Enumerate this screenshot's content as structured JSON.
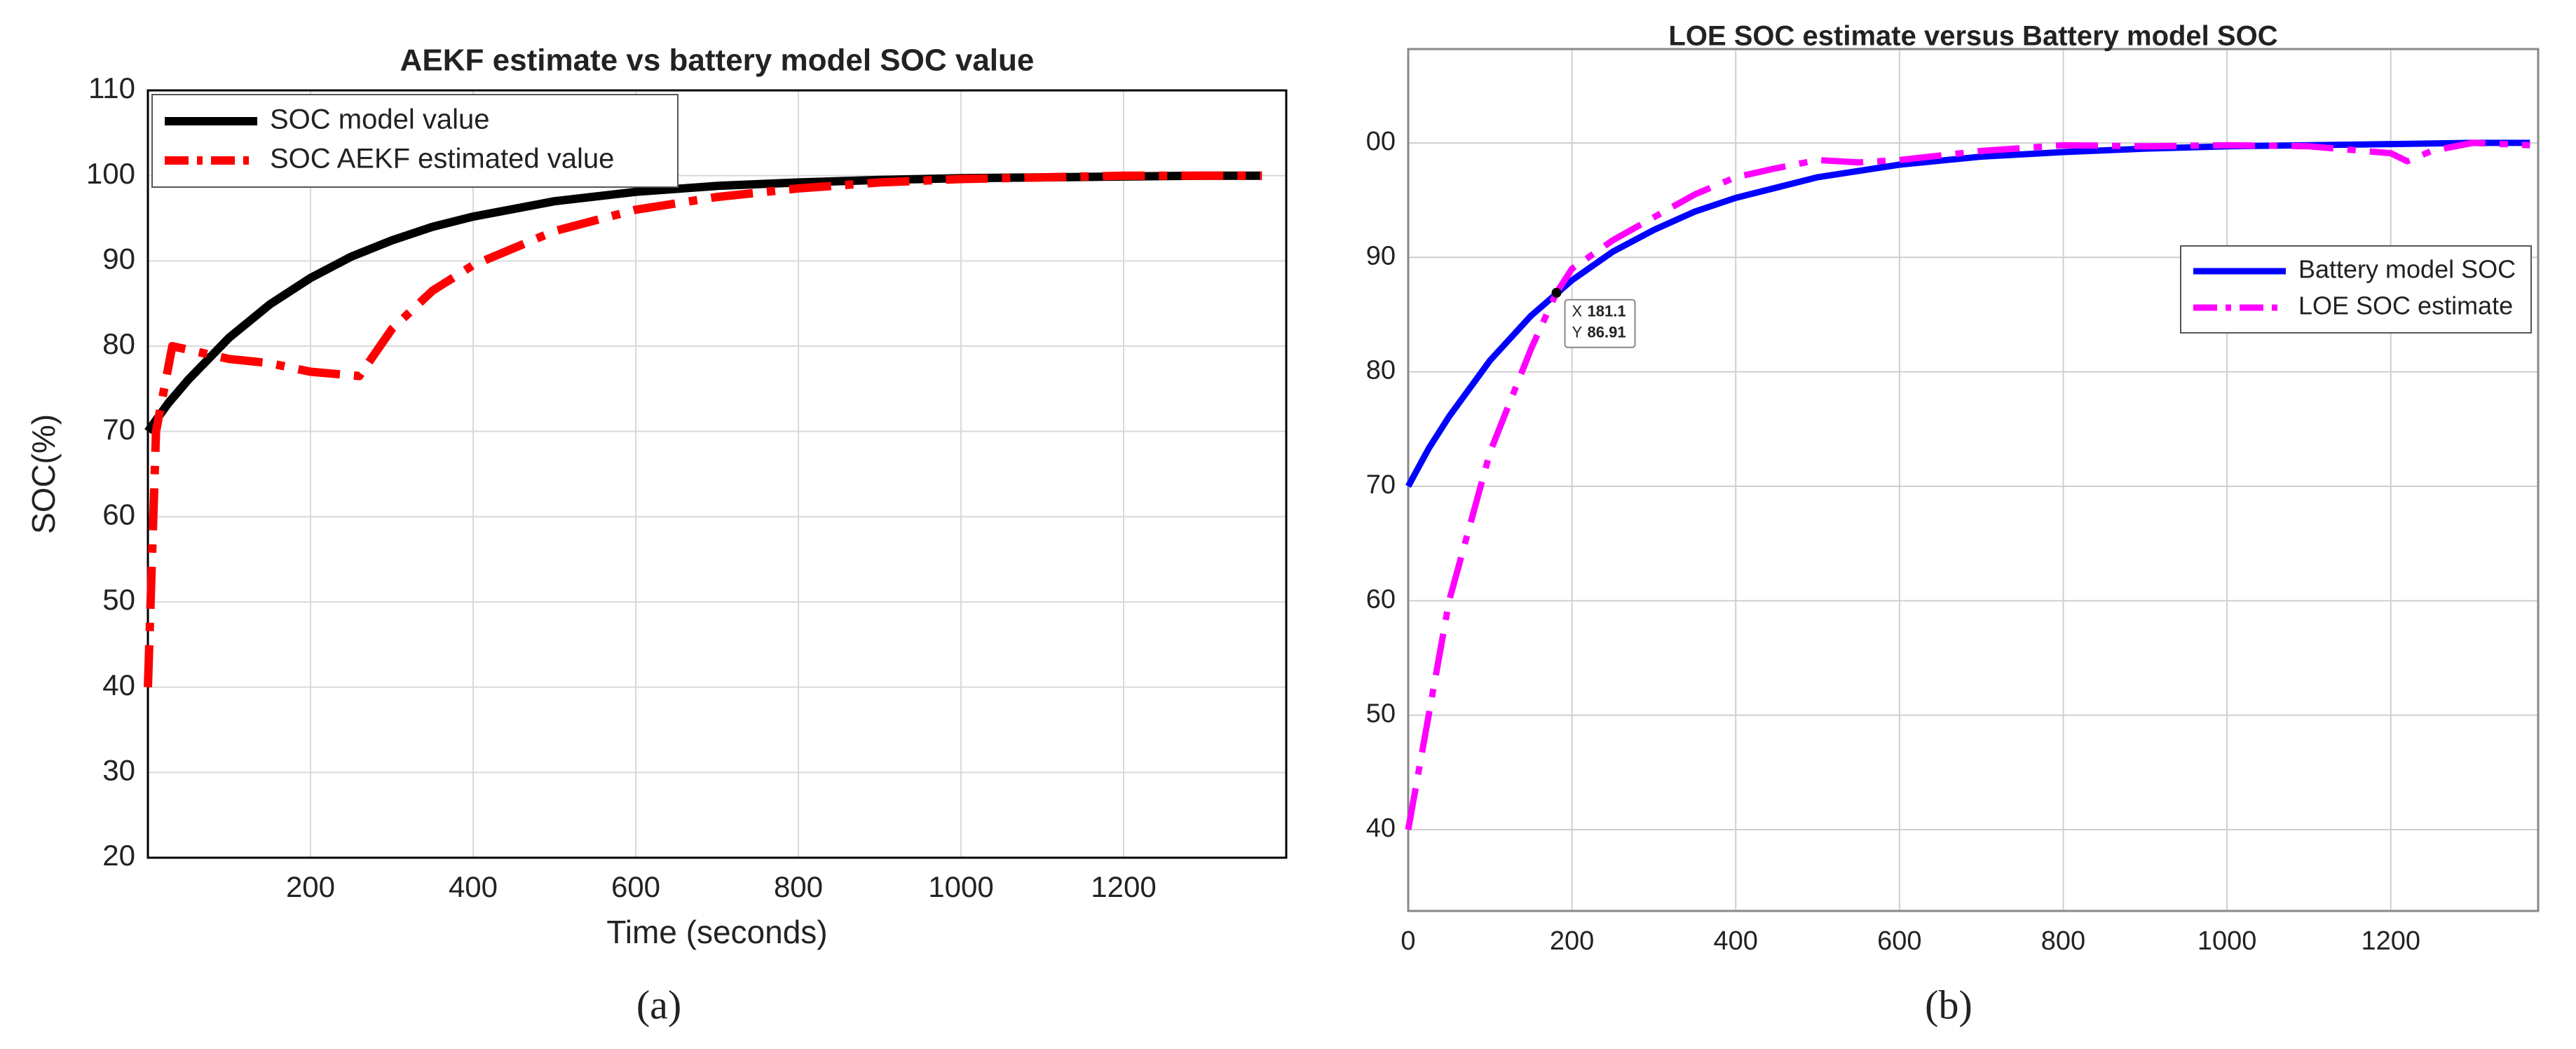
{
  "chart_data": [
    {
      "type": "line",
      "title": "AEKF estimate vs battery model SOC value",
      "xlabel": "Time (seconds)",
      "ylabel": "SOC(%)",
      "caption": "(a)",
      "xlim": [
        0,
        1400
      ],
      "xticks": [
        200,
        400,
        600,
        800,
        1000,
        1200
      ],
      "ylim": [
        20,
        110
      ],
      "yticks": [
        20,
        30,
        40,
        50,
        60,
        70,
        80,
        90,
        100,
        110
      ],
      "grid": true,
      "legend": "upper left",
      "series": [
        {
          "name": "SOC model value",
          "color": "#000000",
          "line_style": "solid",
          "x": [
            0,
            25,
            50,
            100,
            150,
            200,
            250,
            300,
            350,
            400,
            500,
            600,
            700,
            800,
            900,
            1000,
            1100,
            1200,
            1300,
            1370
          ],
          "values": [
            70,
            73.3,
            76.1,
            81.0,
            84.9,
            88.0,
            90.5,
            92.4,
            94.0,
            95.2,
            97.0,
            98.1,
            98.8,
            99.2,
            99.5,
            99.7,
            99.8,
            99.9,
            100,
            100
          ]
        },
        {
          "name": "SOC AEKF estimated value",
          "color": "#ff0000",
          "line_style": "dashdot",
          "x": [
            0,
            10,
            30,
            100,
            150,
            200,
            260,
            300,
            350,
            400,
            500,
            600,
            700,
            800,
            900,
            1000,
            1100,
            1200,
            1370
          ],
          "values": [
            40,
            70,
            80,
            78.5,
            78,
            77,
            76.5,
            82,
            86.5,
            89.5,
            93.5,
            96,
            97.5,
            98.5,
            99.2,
            99.6,
            99.8,
            100,
            100
          ]
        }
      ]
    },
    {
      "type": "line",
      "title": "LOE SOC estimate versus Battery model SOC",
      "caption": "(b)",
      "xlim": [
        0,
        1380
      ],
      "xticks": [
        0,
        200,
        400,
        600,
        800,
        1000,
        1200
      ],
      "ylim": [
        32.9,
        108.2
      ],
      "yticks": [
        40,
        50,
        60,
        70,
        80,
        90,
        {
          "value": 100,
          "label": "00"
        }
      ],
      "grid": true,
      "legend": "right",
      "datatip": {
        "x_label": "X",
        "x": 181.1,
        "y_label": "Y",
        "y": 86.91
      },
      "series": [
        {
          "name": "Battery model SOC",
          "color": "#0000ff",
          "line_style": "solid",
          "x": [
            0,
            25,
            50,
            100,
            150,
            200,
            250,
            300,
            350,
            400,
            500,
            600,
            700,
            800,
            900,
            1000,
            1100,
            1200,
            1300,
            1370
          ],
          "values": [
            70,
            73.3,
            76.1,
            81.0,
            84.9,
            88.0,
            90.5,
            92.4,
            94.0,
            95.2,
            97.0,
            98.1,
            98.8,
            99.2,
            99.5,
            99.7,
            99.8,
            99.9,
            100,
            100
          ]
        },
        {
          "name": "LOE  SOC  estimate",
          "color": "#ff00ff",
          "line_style": "dashdot",
          "x": [
            0,
            25,
            50,
            100,
            150,
            181,
            200,
            250,
            300,
            350,
            400,
            450,
            500,
            550,
            600,
            700,
            800,
            900,
            1000,
            1100,
            1200,
            1220,
            1250,
            1300,
            1370
          ],
          "values": [
            40,
            50,
            60,
            73,
            82,
            86.9,
            89,
            91.5,
            93.5,
            95.5,
            97,
            97.8,
            98.5,
            98.3,
            98.5,
            99.3,
            99.8,
            99.7,
            99.8,
            99.7,
            99.1,
            98.4,
            99.3,
            100,
            99.8
          ]
        }
      ]
    }
  ]
}
